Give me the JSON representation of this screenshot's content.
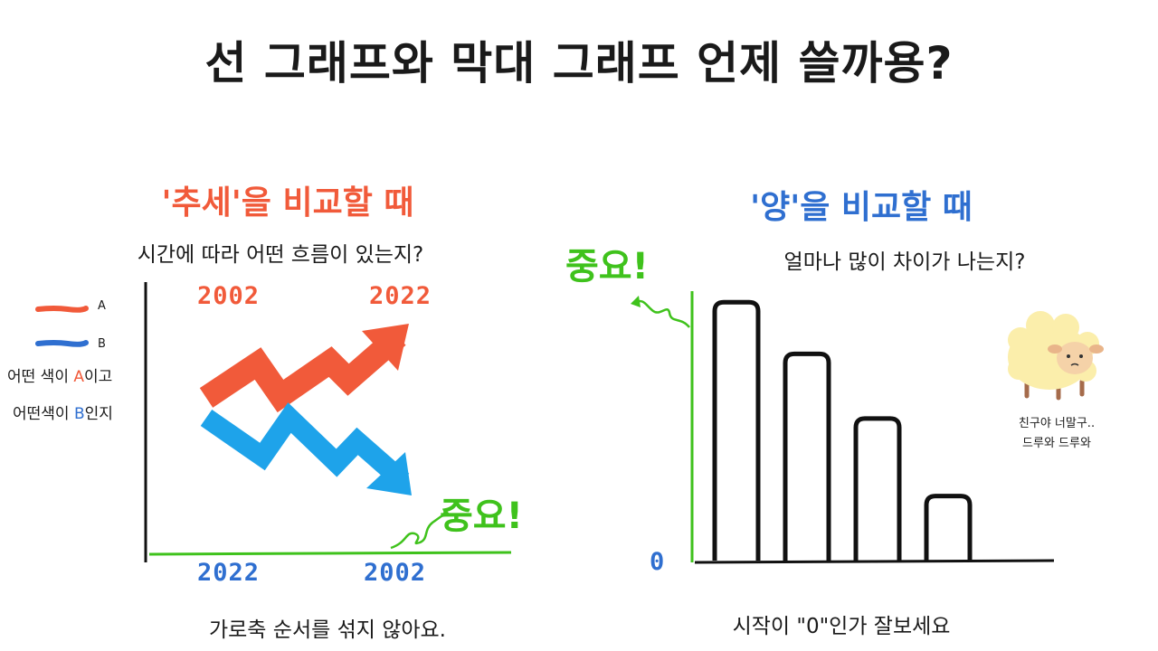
{
  "title": "선 그래프와 막대 그래프 언제 쓸까용?",
  "line_section": {
    "heading": "'추세'을 비교할 때",
    "question": "시간에 따라 어떤 흐름이 있는지?",
    "legend": {
      "a_label": "A",
      "b_label": "B",
      "line1_pre": "어떤 색이 ",
      "line1_mark": "A",
      "line1_post": "이고",
      "line2_pre": "어떤색이 ",
      "line2_mark": "B",
      "line2_post": "인지"
    },
    "top_year_left": "2002",
    "top_year_right": "2022",
    "bottom_year_left": "2022",
    "bottom_year_right": "2002",
    "important": "중요!",
    "caption": "가로축 순서를 섞지 않아요."
  },
  "bar_section": {
    "heading": "'양'을 비교할 때",
    "question": "얼마나 많이 차이가 나는지?",
    "zero_label": "0",
    "important": "중요!",
    "sheep_line1": "친구야 너말구..",
    "sheep_line2": "드루와 드루와",
    "caption": "시작이 \"0\"인가 잘보세요"
  },
  "colors": {
    "red": "#f15a3a",
    "blue": "#2f6fd0",
    "light_blue": "#1ea3ea",
    "green": "#3fc21c",
    "sheep": "#fbeeab"
  },
  "chart_data": {
    "type": "bar",
    "categories": [
      "",
      "",
      "",
      ""
    ],
    "values": [
      100,
      80,
      55,
      25
    ],
    "ylim": [
      0,
      105
    ]
  }
}
